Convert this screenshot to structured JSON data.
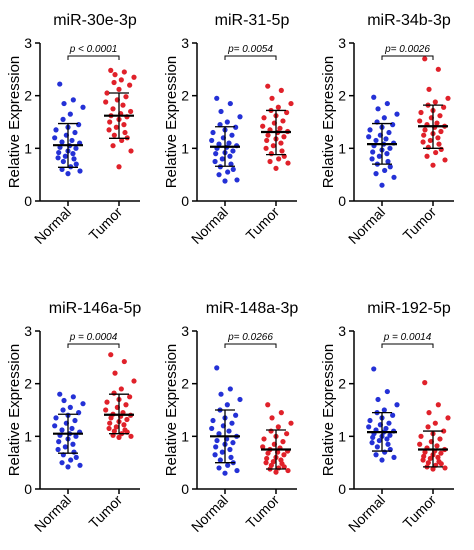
{
  "colors": {
    "normal": "#2431d6",
    "tumor": "#e0212a",
    "axis": "#000000",
    "stat": "#000000"
  },
  "chart_data": [
    {
      "type": "scatter",
      "title": "miR-30e-3p",
      "ylabel": "Relative Expression",
      "ylim": [
        0,
        3
      ],
      "yticks": [
        "0",
        "1",
        "2",
        "3"
      ],
      "categories": [
        "Normal",
        "Tumor"
      ],
      "pvalue": "p < 0.0001",
      "series": [
        {
          "name": "Normal",
          "mean": 1.06,
          "sd_low": 0.64,
          "sd_high": 1.47,
          "values": [
            2.22,
            1.92,
            1.85,
            1.78,
            1.65,
            1.55,
            1.45,
            1.4,
            1.35,
            1.3,
            1.25,
            1.2,
            1.15,
            1.12,
            1.1,
            1.05,
            1.02,
            1.0,
            0.95,
            0.92,
            0.9,
            0.85,
            0.82,
            0.8,
            0.75,
            0.7,
            0.65,
            0.6,
            0.57,
            0.52
          ]
        },
        {
          "name": "Tumor",
          "mean": 1.62,
          "sd_low": 1.19,
          "sd_high": 2.05,
          "values": [
            2.48,
            2.45,
            2.4,
            2.35,
            2.3,
            2.25,
            2.2,
            2.12,
            2.05,
            1.98,
            1.92,
            1.88,
            1.82,
            1.75,
            1.7,
            1.66,
            1.62,
            1.6,
            1.55,
            1.5,
            1.45,
            1.4,
            1.35,
            1.3,
            1.25,
            1.2,
            1.15,
            1.05,
            0.95,
            0.65
          ]
        }
      ]
    },
    {
      "type": "scatter",
      "title": "miR-31-5p",
      "ylabel": "Relative Expression",
      "ylim": [
        0,
        3
      ],
      "yticks": [
        "0",
        "1",
        "2",
        "3"
      ],
      "categories": [
        "Normal",
        "Tumor"
      ],
      "pvalue": "p= 0.0054",
      "series": [
        {
          "name": "Normal",
          "mean": 1.03,
          "sd_low": 0.66,
          "sd_high": 1.41,
          "values": [
            1.95,
            1.85,
            1.7,
            1.6,
            1.5,
            1.45,
            1.4,
            1.35,
            1.3,
            1.25,
            1.2,
            1.15,
            1.1,
            1.08,
            1.05,
            1.02,
            1.0,
            0.95,
            0.92,
            0.9,
            0.85,
            0.8,
            0.75,
            0.7,
            0.65,
            0.6,
            0.55,
            0.5,
            0.4,
            0.38
          ]
        },
        {
          "name": "Tumor",
          "mean": 1.31,
          "sd_low": 0.88,
          "sd_high": 1.72,
          "values": [
            2.18,
            2.1,
            1.95,
            1.85,
            1.78,
            1.72,
            1.68,
            1.62,
            1.58,
            1.52,
            1.48,
            1.42,
            1.38,
            1.35,
            1.32,
            1.3,
            1.25,
            1.22,
            1.18,
            1.15,
            1.1,
            1.05,
            1.0,
            0.95,
            0.9,
            0.85,
            0.8,
            0.75,
            0.72,
            0.62
          ]
        }
      ]
    },
    {
      "type": "scatter",
      "title": "miR-34b-3p",
      "ylabel": "Relative Expression",
      "ylim": [
        0,
        3
      ],
      "yticks": [
        "0",
        "1",
        "2",
        "3"
      ],
      "categories": [
        "Normal",
        "Tumor"
      ],
      "pvalue": "p= 0.0026",
      "series": [
        {
          "name": "Normal",
          "mean": 1.08,
          "sd_low": 0.7,
          "sd_high": 1.47,
          "values": [
            1.97,
            1.85,
            1.75,
            1.65,
            1.58,
            1.5,
            1.45,
            1.4,
            1.35,
            1.3,
            1.25,
            1.22,
            1.18,
            1.15,
            1.1,
            1.08,
            1.05,
            1.0,
            0.97,
            0.93,
            0.9,
            0.85,
            0.8,
            0.75,
            0.7,
            0.65,
            0.58,
            0.52,
            0.45,
            0.3
          ]
        },
        {
          "name": "Tumor",
          "mean": 1.42,
          "sd_low": 1.0,
          "sd_high": 1.82,
          "values": [
            2.7,
            2.5,
            2.12,
            1.95,
            1.88,
            1.82,
            1.78,
            1.72,
            1.68,
            1.62,
            1.58,
            1.52,
            1.48,
            1.45,
            1.42,
            1.4,
            1.35,
            1.32,
            1.28,
            1.25,
            1.2,
            1.15,
            1.12,
            1.08,
            1.02,
            0.98,
            0.92,
            0.85,
            0.78,
            0.68
          ]
        }
      ]
    },
    {
      "type": "scatter",
      "title": "miR-146a-5p",
      "ylabel": "Relative Expression",
      "ylim": [
        0,
        3
      ],
      "yticks": [
        "0",
        "1",
        "2",
        "3"
      ],
      "categories": [
        "Normal",
        "Tumor"
      ],
      "pvalue": "p = 0.0004",
      "series": [
        {
          "name": "Normal",
          "mean": 1.05,
          "sd_low": 0.68,
          "sd_high": 1.42,
          "values": [
            1.8,
            1.75,
            1.68,
            1.62,
            1.55,
            1.5,
            1.45,
            1.4,
            1.35,
            1.3,
            1.25,
            1.2,
            1.15,
            1.12,
            1.08,
            1.05,
            1.02,
            1.0,
            0.95,
            0.9,
            0.85,
            0.8,
            0.75,
            0.7,
            0.65,
            0.6,
            0.55,
            0.5,
            0.45,
            0.42
          ]
        },
        {
          "name": "Tumor",
          "mean": 1.41,
          "sd_low": 1.05,
          "sd_high": 1.8,
          "values": [
            2.55,
            2.42,
            2.2,
            2.05,
            1.9,
            1.82,
            1.75,
            1.7,
            1.65,
            1.6,
            1.55,
            1.5,
            1.45,
            1.42,
            1.4,
            1.38,
            1.35,
            1.32,
            1.28,
            1.25,
            1.22,
            1.18,
            1.15,
            1.12,
            1.1,
            1.08,
            1.05,
            1.02,
            1.0,
            0.98
          ]
        }
      ]
    },
    {
      "type": "scatter",
      "title": "miR-148a-3p",
      "ylabel": "Relative Expression",
      "ylim": [
        0,
        3
      ],
      "yticks": [
        "0",
        "1",
        "2",
        "3"
      ],
      "categories": [
        "Normal",
        "Tumor"
      ],
      "pvalue": "p= 0.0266",
      "series": [
        {
          "name": "Normal",
          "mean": 1.0,
          "sd_low": 0.5,
          "sd_high": 1.5,
          "values": [
            2.3,
            1.9,
            1.8,
            1.7,
            1.6,
            1.5,
            1.4,
            1.35,
            1.3,
            1.25,
            1.2,
            1.15,
            1.1,
            1.05,
            1.0,
            0.95,
            0.92,
            0.88,
            0.85,
            0.8,
            0.75,
            0.7,
            0.65,
            0.6,
            0.55,
            0.5,
            0.45,
            0.4,
            0.35,
            0.3
          ]
        },
        {
          "name": "Tumor",
          "mean": 0.75,
          "sd_low": 0.38,
          "sd_high": 1.12,
          "values": [
            1.6,
            1.45,
            1.35,
            1.25,
            1.18,
            1.1,
            1.05,
            1.0,
            0.95,
            0.9,
            0.85,
            0.8,
            0.78,
            0.75,
            0.72,
            0.7,
            0.68,
            0.65,
            0.6,
            0.58,
            0.55,
            0.52,
            0.5,
            0.48,
            0.45,
            0.42,
            0.4,
            0.38,
            0.35,
            0.32
          ]
        }
      ]
    },
    {
      "type": "scatter",
      "title": "miR-192-5p",
      "ylabel": "Relative Expression",
      "ylim": [
        0,
        3
      ],
      "yticks": [
        "0",
        "1",
        "2",
        "3"
      ],
      "categories": [
        "Normal",
        "Tumor"
      ],
      "pvalue": "p = 0.0014",
      "series": [
        {
          "name": "Normal",
          "mean": 1.08,
          "sd_low": 0.72,
          "sd_high": 1.45,
          "values": [
            2.28,
            1.85,
            1.7,
            1.6,
            1.5,
            1.45,
            1.4,
            1.35,
            1.3,
            1.25,
            1.22,
            1.18,
            1.15,
            1.12,
            1.1,
            1.08,
            1.05,
            1.02,
            1.0,
            0.98,
            0.95,
            0.92,
            0.88,
            0.85,
            0.8,
            0.75,
            0.7,
            0.65,
            0.6,
            0.55
          ]
        },
        {
          "name": "Tumor",
          "mean": 0.75,
          "sd_low": 0.42,
          "sd_high": 1.1,
          "values": [
            2.02,
            1.6,
            1.45,
            1.35,
            1.25,
            1.18,
            1.1,
            1.05,
            1.0,
            0.95,
            0.9,
            0.85,
            0.82,
            0.78,
            0.75,
            0.72,
            0.7,
            0.68,
            0.65,
            0.62,
            0.6,
            0.58,
            0.55,
            0.52,
            0.5,
            0.48,
            0.45,
            0.42,
            0.4,
            0.38
          ]
        }
      ]
    }
  ]
}
